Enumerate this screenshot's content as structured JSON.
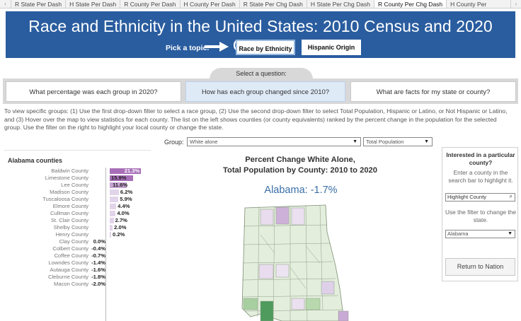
{
  "tabs": {
    "items": [
      "R State Per Dash",
      "H State Per Dash",
      "R County Per Dash",
      "H County Per Dash",
      "R State Per Chg Dash",
      "H State Per Chg Dash",
      "R County Per Chg Dash",
      "H County Per"
    ],
    "active_index": 6
  },
  "banner": {
    "title": "Race and Ethnicity in the United States: 2010 Census and 2020 Census",
    "pick_label": "Pick a topic.",
    "topic_race": "Race by Ethnicity",
    "topic_hispanic": "Hispanic Origin",
    "background": "#2a5d9f"
  },
  "questions": {
    "header": "Select a question:",
    "q1": "What percentage was each group in 2020?",
    "q2": "How has each group changed since 2010?",
    "q3": "What are facts for my state or county?",
    "selected": "q2"
  },
  "instructions": "To view specific groups: (1) Use the first drop-down filter to select a race group, (2) Use the second drop-down filter to select Total Population, Hispanic or Latino, or Not Hispanic or Latino, and (3) Hover over the map to view statistics for each county. The list on the left shows counties (or county equivalents) ranked by the percent change in the population for the selected group. Use the filter on the right to highlight your local county or change the state.",
  "filters": {
    "group_label": "Group:",
    "group_value": "White alone",
    "population_value": "Total Population"
  },
  "county_list": {
    "title": "Alabama counties",
    "rows": [
      {
        "name": "Baldwin County",
        "value": 21.3,
        "label": "21.3%"
      },
      {
        "name": "Limestone County",
        "value": 15.9,
        "label": "15.9%"
      },
      {
        "name": "Lee County",
        "value": 11.6,
        "label": "11.6%"
      },
      {
        "name": "Madison County",
        "value": 6.2,
        "label": "6.2%"
      },
      {
        "name": "Tuscaloosa County",
        "value": 5.9,
        "label": "5.9%"
      },
      {
        "name": "Elmore County",
        "value": 4.4,
        "label": "4.4%"
      },
      {
        "name": "Cullman County",
        "value": 4.0,
        "label": "4.0%"
      },
      {
        "name": "St. Clair County",
        "value": 2.7,
        "label": "2.7%"
      },
      {
        "name": "Shelby County",
        "value": 2.0,
        "label": "2.0%"
      },
      {
        "name": "Henry County",
        "value": 0.2,
        "label": "0.2%"
      },
      {
        "name": "Clay County",
        "value": 0.0,
        "label": "0.0%"
      },
      {
        "name": "Colbert County",
        "value": -0.4,
        "label": "-0.4%"
      },
      {
        "name": "Coffee County",
        "value": -0.7,
        "label": "-0.7%"
      },
      {
        "name": "Lowndes County",
        "value": -1.4,
        "label": "-1.4%"
      },
      {
        "name": "Autauga County",
        "value": -1.6,
        "label": "-1.6%"
      },
      {
        "name": "Cleburne County",
        "value": -1.8,
        "label": "-1.8%"
      },
      {
        "name": "Macon County",
        "value": -2.0,
        "label": "-2.0%"
      }
    ]
  },
  "chart": {
    "title_line1": "Percent Change White Alone,",
    "title_line2": "Total Population by County: 2010 to 2020",
    "state_label": "Alabama: -1.7%"
  },
  "right_panel": {
    "title": "Interested in a particular county?",
    "hint": "Enter a county in the search bar to highlight it.",
    "search_placeholder": "Highlight County",
    "state_hint": "Use the filter to change the state.",
    "state_value": "Alabama",
    "return_label": "Return to Nation"
  },
  "colors": {
    "positive_bar": "#e2d4ea",
    "highlight_bar": "#a86fb8",
    "accent_blue": "#3a6fa8"
  }
}
